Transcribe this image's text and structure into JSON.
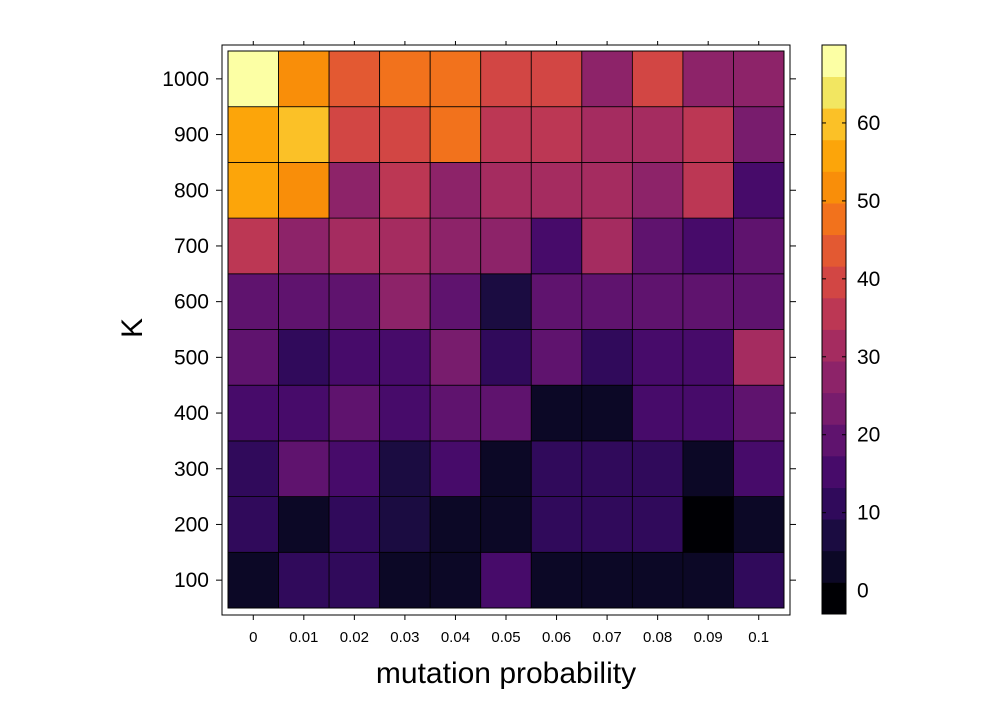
{
  "chart_data": {
    "type": "heatmap",
    "title": "",
    "xlabel": "mutation probability",
    "ylabel": "K",
    "x": [
      "0",
      "0.01",
      "0.02",
      "0.03",
      "0.04",
      "0.05",
      "0.06",
      "0.07",
      "0.08",
      "0.09",
      "0.1"
    ],
    "y": [
      "100",
      "200",
      "300",
      "400",
      "500",
      "600",
      "700",
      "800",
      "900",
      "1000"
    ],
    "values": [
      [
        3,
        10,
        10,
        2,
        3,
        16,
        3,
        3,
        3,
        5,
        10
      ],
      [
        10,
        3,
        10,
        9,
        2,
        3,
        10,
        10,
        10,
        -3,
        3
      ],
      [
        10,
        21,
        14,
        9,
        14,
        2,
        10,
        10,
        10,
        3,
        14
      ],
      [
        14,
        14,
        18,
        14,
        18,
        21,
        2,
        2,
        14,
        14,
        18
      ],
      [
        18,
        10,
        14,
        14,
        22,
        10,
        21,
        10,
        14,
        14,
        33
      ],
      [
        18,
        21,
        18,
        29,
        18,
        9,
        18,
        18,
        18,
        18,
        18
      ],
      [
        34,
        28,
        33,
        31,
        29,
        28,
        14,
        31,
        21,
        14,
        20
      ],
      [
        55,
        52,
        28,
        34,
        26,
        31,
        33,
        32,
        29,
        36,
        17
      ],
      [
        56,
        60,
        40,
        40,
        46,
        34,
        35,
        30,
        31,
        35,
        22
      ],
      [
        67,
        50,
        45,
        46,
        47,
        38,
        39,
        27,
        41,
        27,
        29
      ]
    ],
    "colorbar": {
      "ticks": [
        0,
        10,
        20,
        30,
        40,
        50,
        60
      ],
      "range": [
        -3,
        70
      ],
      "colors": [
        "#000004",
        "#0c0826",
        "#1b0c41",
        "#300a5b",
        "#470b6a",
        "#5f136e",
        "#781c6d",
        "#8d2369",
        "#a52c60",
        "#bc3754",
        "#d24644",
        "#e35932",
        "#f2721c",
        "#f98e09",
        "#fca50a",
        "#fbc127",
        "#f2e661",
        "#fcffa4"
      ]
    }
  }
}
